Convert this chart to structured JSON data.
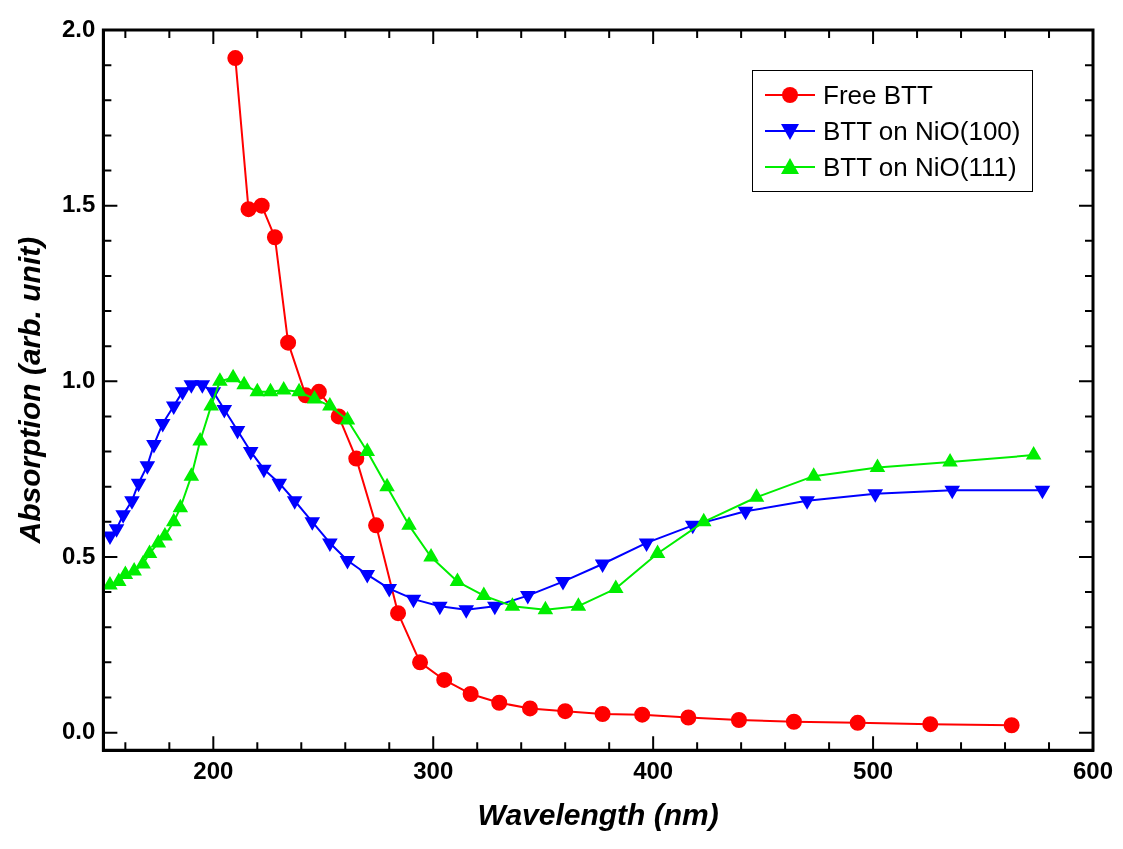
{
  "chart_data": {
    "type": "line",
    "xlabel": "Wavelength (nm)",
    "ylabel": "Absorption (arb. unit)",
    "xlim": [
      150,
      600
    ],
    "ylim": [
      -0.05,
      2.0
    ],
    "xticks": [
      {
        "value": 160,
        "label": null
      },
      {
        "value": 180,
        "label": null
      },
      200,
      {
        "value": 220,
        "label": null
      },
      {
        "value": 240,
        "label": null
      },
      {
        "value": 260,
        "label": null
      },
      {
        "value": 280,
        "label": null
      },
      300,
      {
        "value": 320,
        "label": null
      },
      {
        "value": 340,
        "label": null
      },
      {
        "value": 360,
        "label": null
      },
      {
        "value": 380,
        "label": null
      },
      400,
      {
        "value": 420,
        "label": null
      },
      {
        "value": 440,
        "label": null
      },
      {
        "value": 460,
        "label": null
      },
      {
        "value": 480,
        "label": null
      },
      500,
      {
        "value": 520,
        "label": null
      },
      {
        "value": 540,
        "label": null
      },
      {
        "value": 560,
        "label": null
      },
      {
        "value": 580,
        "label": null
      },
      600
    ],
    "yticks": [
      {
        "value": 0,
        "label": "0.0"
      },
      {
        "value": 0.1,
        "label": null
      },
      {
        "value": 0.2,
        "label": null
      },
      {
        "value": 0.3,
        "label": null
      },
      {
        "value": 0.4,
        "label": null
      },
      0.5,
      {
        "value": 0.6,
        "label": null
      },
      {
        "value": 0.7,
        "label": null
      },
      {
        "value": 0.8,
        "label": null
      },
      {
        "value": 0.9,
        "label": null
      },
      {
        "value": 1,
        "label": "1.0"
      },
      {
        "value": 1.1,
        "label": null
      },
      {
        "value": 1.2,
        "label": null
      },
      {
        "value": 1.3,
        "label": null
      },
      {
        "value": 1.4,
        "label": null
      },
      1.5,
      {
        "value": 1.6,
        "label": null
      },
      {
        "value": 1.7,
        "label": null
      },
      {
        "value": 1.8,
        "label": null
      },
      {
        "value": 1.9,
        "label": null
      },
      {
        "value": 2,
        "label": "2.0"
      }
    ],
    "legend": "top right",
    "line_style": "solid",
    "series": [
      {
        "name": "Free BTT",
        "color": "#ff0000",
        "marker": "circle",
        "x": [
          210,
          216,
          222,
          228,
          234,
          242,
          248,
          257,
          265,
          274,
          284,
          294,
          305,
          317,
          330,
          344,
          360,
          377,
          395,
          416,
          439,
          464,
          493,
          526,
          563
        ],
        "values": [
          1.92,
          1.49,
          1.5,
          1.41,
          1.11,
          0.96,
          0.97,
          0.9,
          0.78,
          0.59,
          0.34,
          0.2,
          0.15,
          0.11,
          0.085,
          0.069,
          0.061,
          0.053,
          0.051,
          0.043,
          0.036,
          0.031,
          0.028,
          0.024,
          0.021
        ]
      },
      {
        "name": "BTT on NiO(100)",
        "color": "#0000ff",
        "marker": "triangle-down",
        "x": [
          153,
          156,
          159,
          163,
          166,
          170,
          173,
          177,
          182,
          186,
          190,
          195,
          200,
          205,
          211,
          217,
          223,
          230,
          237,
          245,
          253,
          261,
          270,
          280,
          291,
          303,
          315,
          328,
          343,
          359,
          377,
          397,
          418,
          442,
          470,
          501,
          536,
          577
        ],
        "values": [
          0.56,
          0.58,
          0.62,
          0.66,
          0.71,
          0.76,
          0.82,
          0.88,
          0.93,
          0.97,
          0.99,
          0.99,
          0.97,
          0.92,
          0.86,
          0.8,
          0.75,
          0.71,
          0.66,
          0.6,
          0.54,
          0.49,
          0.45,
          0.41,
          0.38,
          0.36,
          0.35,
          0.36,
          0.39,
          0.43,
          0.48,
          0.54,
          0.59,
          0.63,
          0.66,
          0.68,
          0.69,
          0.69
        ]
      },
      {
        "name": "BTT on NiO(111)",
        "color": "#00ee00",
        "marker": "triangle",
        "x": [
          153,
          157,
          160,
          164,
          168,
          171,
          175,
          178,
          182,
          185,
          190,
          194,
          199,
          203,
          209,
          214,
          220,
          226,
          232,
          239,
          246,
          253,
          261,
          270,
          279,
          289,
          299,
          311,
          323,
          336,
          351,
          366,
          383,
          402,
          423,
          447,
          473,
          502,
          535,
          573
        ],
        "values": [
          0.42,
          0.43,
          0.45,
          0.46,
          0.48,
          0.51,
          0.54,
          0.56,
          0.6,
          0.64,
          0.73,
          0.83,
          0.93,
          1.0,
          1.01,
          0.99,
          0.97,
          0.97,
          0.975,
          0.97,
          0.95,
          0.93,
          0.89,
          0.8,
          0.7,
          0.59,
          0.5,
          0.43,
          0.39,
          0.36,
          0.35,
          0.36,
          0.41,
          0.51,
          0.6,
          0.67,
          0.73,
          0.755,
          0.77,
          0.79
        ]
      }
    ]
  }
}
